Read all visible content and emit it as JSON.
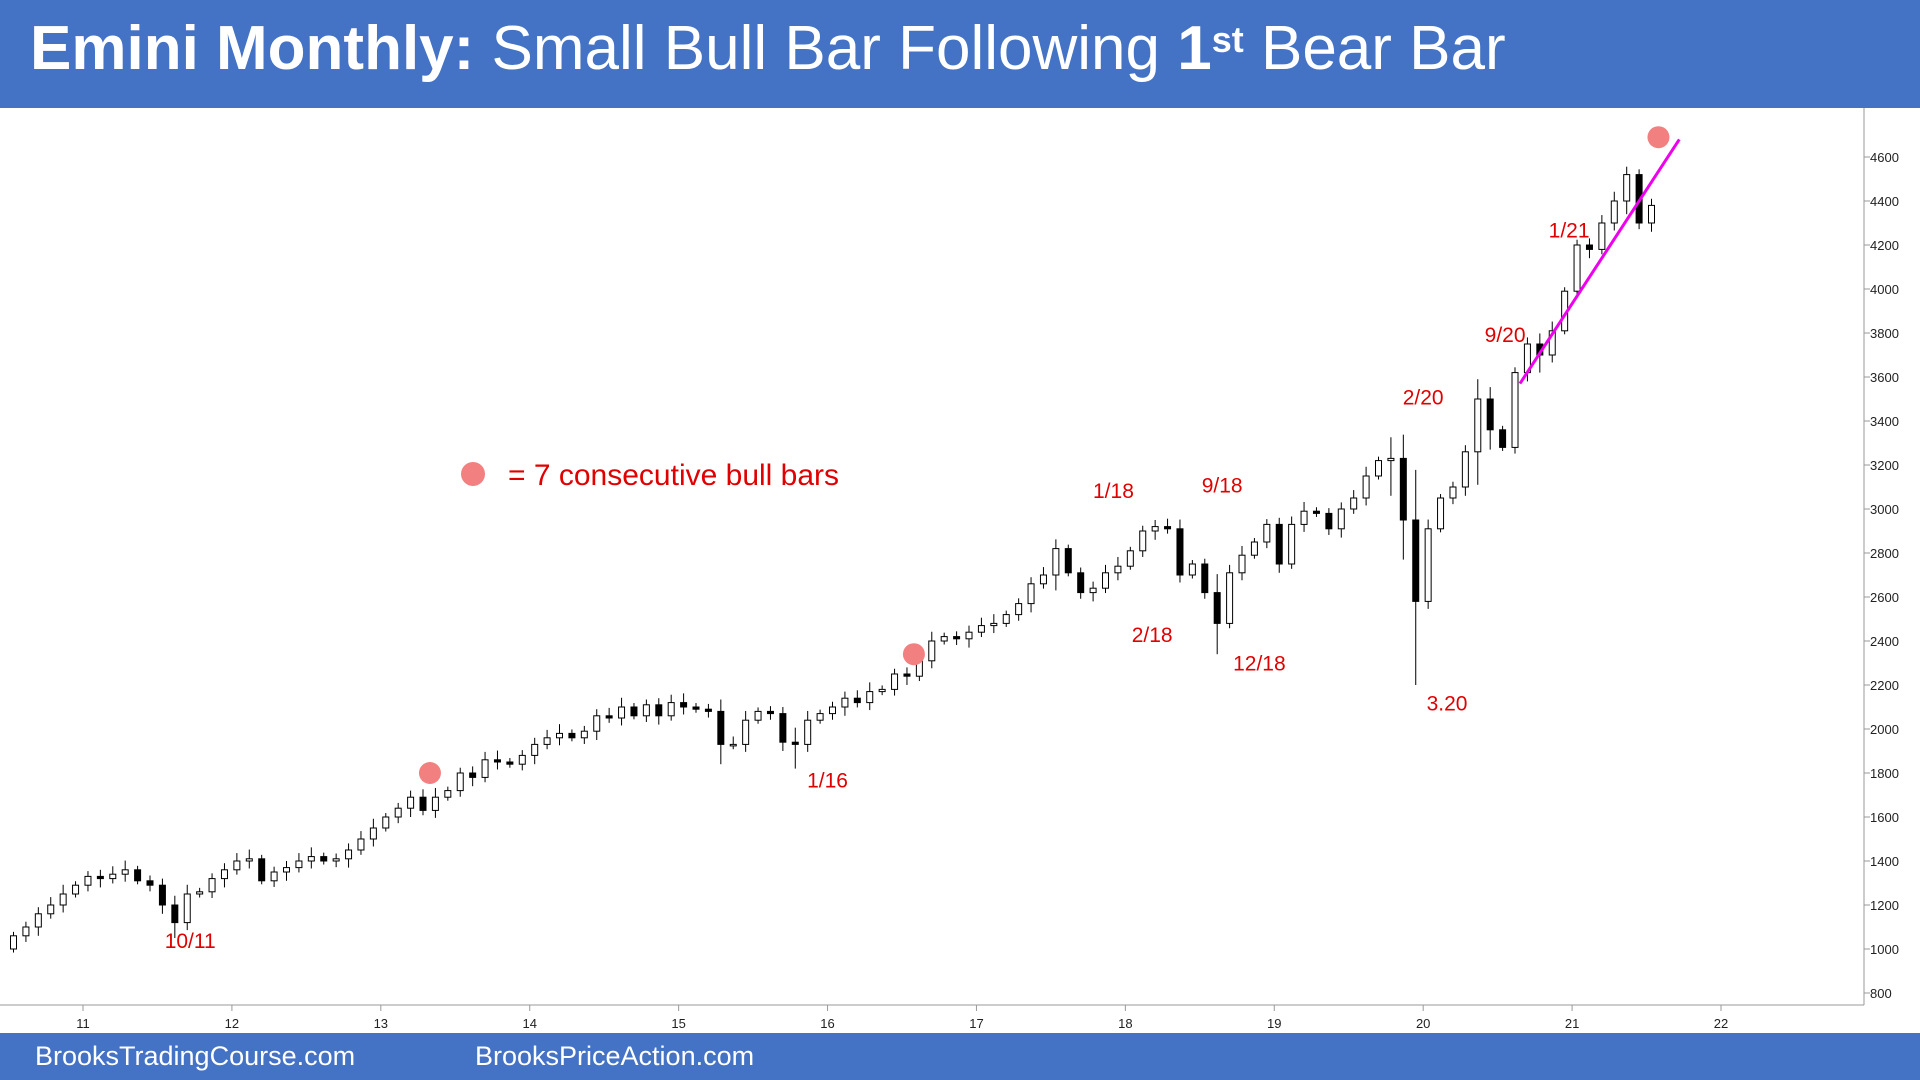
{
  "header": {
    "title_bold": "Emini Monthly:",
    "title_rest": "Small Bull Bar Following ",
    "title_num": "1",
    "title_sup": "st",
    "title_end": " Bear Bar"
  },
  "footer": {
    "left": "BrooksTradingCourse.com",
    "right": "BrooksPriceAction.com"
  },
  "colors": {
    "header_bg": "#4472c4",
    "annotation": "#e00000",
    "marker": "#f28080",
    "trendline": "#ee00ee",
    "bear": "#000000",
    "bull": "#ffffff"
  },
  "chart_data": {
    "type": "candlestick",
    "ylim": [
      800,
      4800
    ],
    "x_range": [
      2010.5,
      2022.76
    ],
    "y_ticks": [
      800,
      1000,
      1200,
      1400,
      1600,
      1800,
      2000,
      2200,
      2400,
      2600,
      2800,
      3000,
      3200,
      3400,
      3600,
      3800,
      4000,
      4200,
      4400,
      4600
    ],
    "x_ticks": [
      {
        "label": "11",
        "x": 2011
      },
      {
        "label": "12",
        "x": 2012
      },
      {
        "label": "13",
        "x": 2013
      },
      {
        "label": "14",
        "x": 2014
      },
      {
        "label": "15",
        "x": 2015
      },
      {
        "label": "16",
        "x": 2016
      },
      {
        "label": "17",
        "x": 2017
      },
      {
        "label": "18",
        "x": 2018
      },
      {
        "label": "19",
        "x": 2019
      },
      {
        "label": "20",
        "x": 2020
      },
      {
        "label": "21",
        "x": 2021
      },
      {
        "label": "22",
        "x": 2022
      }
    ],
    "closes": [
      1060,
      1100,
      1160,
      1200,
      1250,
      1290,
      1330,
      1320,
      1340,
      1360,
      1310,
      1290,
      1200,
      1120,
      1250,
      1260,
      1320,
      1360,
      1400,
      1410,
      1310,
      1350,
      1370,
      1400,
      1420,
      1400,
      1410,
      1450,
      1500,
      1550,
      1600,
      1640,
      1690,
      1630,
      1690,
      1720,
      1800,
      1780,
      1860,
      1850,
      1840,
      1880,
      1930,
      1960,
      1980,
      1960,
      1990,
      2060,
      2050,
      2100,
      2060,
      2110,
      2060,
      2120,
      2100,
      2090,
      2080,
      1930,
      1930,
      2040,
      2080,
      2070,
      1940,
      1930,
      2040,
      2070,
      2100,
      2140,
      2120,
      2170,
      2180,
      2250,
      2240,
      2310,
      2400,
      2420,
      2410,
      2440,
      2470,
      2480,
      2520,
      2570,
      2660,
      2700,
      2820,
      2710,
      2620,
      2640,
      2710,
      2740,
      2810,
      2900,
      2920,
      2910,
      2700,
      2750,
      2620,
      2480,
      2710,
      2790,
      2850,
      2930,
      2750,
      2930,
      2990,
      2980,
      2910,
      3000,
      3050,
      3150,
      3220,
      3230,
      2950,
      2580,
      2910,
      3050,
      3100,
      3260,
      3500,
      3360,
      3280,
      3620,
      3750,
      3700,
      3810,
      3990,
      4200,
      4180,
      4300,
      4400,
      4520,
      4300,
      4380
    ],
    "opens": [
      1000,
      1060,
      1100,
      1160,
      1200,
      1250,
      1290,
      1330,
      1320,
      1340,
      1360,
      1310,
      1290,
      1200,
      1120,
      1250,
      1260,
      1320,
      1360,
      1400,
      1410,
      1310,
      1350,
      1370,
      1400,
      1420,
      1400,
      1410,
      1450,
      1500,
      1550,
      1600,
      1640,
      1690,
      1630,
      1690,
      1720,
      1800,
      1780,
      1860,
      1850,
      1840,
      1880,
      1930,
      1960,
      1980,
      1960,
      1990,
      2060,
      2050,
      2100,
      2060,
      2110,
      2060,
      2120,
      2100,
      2090,
      2080,
      1930,
      1930,
      2040,
      2080,
      2070,
      1940,
      1930,
      2040,
      2070,
      2100,
      2140,
      2120,
      2170,
      2180,
      2250,
      2240,
      2310,
      2400,
      2420,
      2410,
      2440,
      2470,
      2480,
      2520,
      2570,
      2660,
      2700,
      2820,
      2710,
      2620,
      2640,
      2710,
      2740,
      2810,
      2900,
      2920,
      2910,
      2700,
      2750,
      2620,
      2480,
      2710,
      2790,
      2850,
      2930,
      2750,
      2930,
      2990,
      2980,
      2910,
      3000,
      3050,
      3150,
      3220,
      3230,
      2950,
      2580,
      2910,
      3050,
      3100,
      3260,
      3500,
      3360,
      3280,
      3620,
      3750,
      3700,
      3810,
      3990,
      4200,
      4180,
      4300,
      4400,
      4520,
      4300
    ],
    "annotations": [
      {
        "text": "10/11",
        "x": 2011.72,
        "y": 1005
      },
      {
        "text": "1/16",
        "x": 2016.0,
        "y": 1735
      },
      {
        "text": "1/18",
        "x": 2017.92,
        "y": 3050
      },
      {
        "text": "2/18",
        "x": 2018.18,
        "y": 2395
      },
      {
        "text": "9/18",
        "x": 2018.65,
        "y": 3075
      },
      {
        "text": "12/18",
        "x": 2018.9,
        "y": 2265
      },
      {
        "text": "2/20",
        "x": 2020.0,
        "y": 3475
      },
      {
        "text": "3.20",
        "x": 2020.16,
        "y": 2085
      },
      {
        "text": "9/20",
        "x": 2020.55,
        "y": 3760
      },
      {
        "text": "1/21",
        "x": 2020.98,
        "y": 4235
      }
    ],
    "markers": [
      {
        "x": 2013.33,
        "y": 1800
      },
      {
        "x": 2016.58,
        "y": 2340
      },
      {
        "x": 2021.58,
        "y": 4690
      }
    ],
    "trendline": {
      "x1": 2020.65,
      "y1": 3570,
      "x2": 2021.72,
      "y2": 4680
    },
    "legend": {
      "text": "= 7 consecutive bull bars"
    }
  }
}
